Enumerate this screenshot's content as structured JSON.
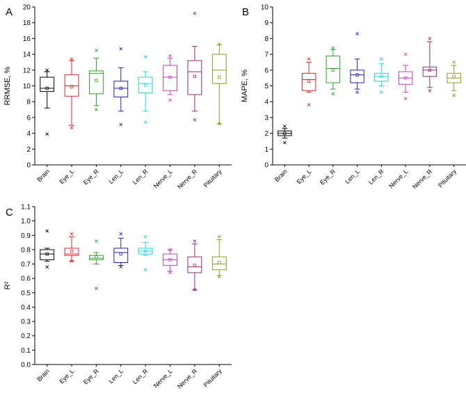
{
  "chart_data": [
    {
      "panel": "A",
      "type": "box",
      "ylabel": "RRMSE, %",
      "ylim": [
        0,
        20
      ],
      "yticks": [
        0,
        2,
        4,
        6,
        8,
        10,
        12,
        14,
        16,
        18,
        20
      ],
      "categories": [
        "Brain",
        "Eye_L",
        "Eye_R",
        "Len_L",
        "Len_R",
        "Nerve_L",
        "Nerve_R",
        "Pituitary"
      ],
      "colors": [
        "#000000",
        "#d62728",
        "#2ca02c",
        "#1f1fb4",
        "#17d4e0",
        "#c03fc0",
        "#8c2a6e",
        "#8f9a1a"
      ],
      "boxes": [
        {
          "min": 7.2,
          "q1": 9.3,
          "median": 9.7,
          "q3": 11.1,
          "max": 11.8,
          "mean": 9.7,
          "outliers": [
            3.9,
            12.0
          ]
        },
        {
          "min": 5.0,
          "q1": 8.7,
          "median": 10.0,
          "q3": 11.4,
          "max": 13.2,
          "mean": 9.9,
          "outliers": [
            4.7,
            13.4
          ]
        },
        {
          "min": 7.5,
          "q1": 9.0,
          "median": 11.6,
          "q3": 11.9,
          "max": 13.5,
          "mean": 10.7,
          "outliers": [
            7.0,
            14.5
          ]
        },
        {
          "min": 6.8,
          "q1": 8.6,
          "median": 9.7,
          "q3": 10.6,
          "max": 12.3,
          "mean": 9.7,
          "outliers": [
            5.1,
            14.7
          ]
        },
        {
          "min": 6.8,
          "q1": 9.1,
          "median": 10.3,
          "q3": 11.1,
          "max": 11.8,
          "mean": 10.1,
          "outliers": [
            5.4,
            13.7
          ]
        },
        {
          "min": 8.9,
          "q1": 9.4,
          "median": 11.1,
          "q3": 12.6,
          "max": 13.5,
          "mean": 11.1,
          "outliers": [
            8.2,
            13.8
          ]
        },
        {
          "min": 6.8,
          "q1": 8.9,
          "median": 11.8,
          "q3": 13.2,
          "max": 15.0,
          "mean": 11.2,
          "outliers": [
            5.7,
            19.2
          ]
        },
        {
          "min": 5.2,
          "q1": 10.3,
          "median": 12.0,
          "q3": 14.0,
          "max": 15.2,
          "mean": 11.1,
          "outliers": [
            5.2,
            15.3
          ]
        }
      ]
    },
    {
      "panel": "B",
      "type": "box",
      "ylabel": "MAPE, %",
      "ylim": [
        0,
        10
      ],
      "yticks": [
        0,
        1,
        2,
        3,
        4,
        5,
        6,
        7,
        8,
        9,
        10
      ],
      "categories": [
        "Brain",
        "Eye_L",
        "Eye_R",
        "Len_L",
        "Len_R",
        "Nerve_L",
        "Nerve_R",
        "Pituitary"
      ],
      "colors": [
        "#000000",
        "#d62728",
        "#2ca02c",
        "#1f1fb4",
        "#17d4e0",
        "#c03fc0",
        "#8c2a6e",
        "#8f9a1a"
      ],
      "boxes": [
        {
          "min": 1.7,
          "q1": 1.85,
          "median": 2.0,
          "q3": 2.15,
          "max": 2.3,
          "mean": 2.0,
          "outliers": [
            1.4,
            2.45
          ]
        },
        {
          "min": 4.6,
          "q1": 4.7,
          "median": 5.4,
          "q3": 5.8,
          "max": 6.5,
          "mean": 5.3,
          "outliers": [
            3.8,
            6.7
          ]
        },
        {
          "min": 4.8,
          "q1": 5.2,
          "median": 6.1,
          "q3": 6.9,
          "max": 7.3,
          "mean": 6.0,
          "outliers": [
            4.5,
            7.4
          ]
        },
        {
          "min": 4.8,
          "q1": 5.2,
          "median": 5.7,
          "q3": 6.0,
          "max": 6.7,
          "mean": 5.7,
          "outliers": [
            4.6,
            8.3
          ]
        },
        {
          "min": 5.0,
          "q1": 5.3,
          "median": 5.6,
          "q3": 5.8,
          "max": 6.4,
          "mean": 5.6,
          "outliers": [
            4.6,
            6.7
          ]
        },
        {
          "min": 4.6,
          "q1": 5.1,
          "median": 5.5,
          "q3": 5.9,
          "max": 6.3,
          "mean": 5.5,
          "outliers": [
            4.2,
            7.0
          ]
        },
        {
          "min": 4.9,
          "q1": 5.6,
          "median": 6.0,
          "q3": 6.2,
          "max": 7.8,
          "mean": 6.0,
          "outliers": [
            4.7,
            8.0
          ]
        },
        {
          "min": 4.7,
          "q1": 5.2,
          "median": 5.5,
          "q3": 5.8,
          "max": 6.3,
          "mean": 5.6,
          "outliers": [
            4.4,
            6.5
          ]
        }
      ]
    },
    {
      "panel": "C",
      "type": "box",
      "ylabel": "R²",
      "ylim": [
        0,
        1.1
      ],
      "yticks": [
        "0.0",
        "0.1",
        "0.2",
        "0.3",
        "0.4",
        "0.5",
        "0.6",
        "0.7",
        "0.8",
        "0.9",
        "1.0",
        "1.1"
      ],
      "categories": [
        "Brain",
        "Eye_L",
        "Eye_R",
        "Len_L",
        "Len_R",
        "Nerve_L",
        "Nerve_R",
        "Pituitary"
      ],
      "colors": [
        "#000000",
        "#d62728",
        "#2ca02c",
        "#1f1fb4",
        "#17d4e0",
        "#c03fc0",
        "#8c2a6e",
        "#8f9a1a"
      ],
      "boxes": [
        {
          "min": 0.72,
          "q1": 0.73,
          "median": 0.77,
          "q3": 0.8,
          "max": 0.81,
          "mean": 0.77,
          "outliers": [
            0.68,
            0.93
          ]
        },
        {
          "min": 0.72,
          "q1": 0.76,
          "median": 0.77,
          "q3": 0.81,
          "max": 0.89,
          "mean": 0.79,
          "outliers": [
            0.72,
            0.91
          ]
        },
        {
          "min": 0.7,
          "q1": 0.73,
          "median": 0.74,
          "q3": 0.76,
          "max": 0.78,
          "mean": 0.75,
          "outliers": [
            0.53,
            0.86
          ]
        },
        {
          "min": 0.69,
          "q1": 0.71,
          "median": 0.78,
          "q3": 0.81,
          "max": 0.88,
          "mean": 0.77,
          "outliers": [
            0.68,
            0.91
          ]
        },
        {
          "min": 0.76,
          "q1": 0.77,
          "median": 0.79,
          "q3": 0.81,
          "max": 0.85,
          "mean": 0.79,
          "outliers": [
            0.66,
            0.89
          ]
        },
        {
          "min": 0.65,
          "q1": 0.69,
          "median": 0.73,
          "q3": 0.77,
          "max": 0.8,
          "mean": 0.73,
          "outliers": [
            0.64,
            0.8
          ]
        },
        {
          "min": 0.52,
          "q1": 0.64,
          "median": 0.68,
          "q3": 0.75,
          "max": 0.84,
          "mean": 0.69,
          "outliers": [
            0.52,
            0.86
          ]
        },
        {
          "min": 0.62,
          "q1": 0.66,
          "median": 0.7,
          "q3": 0.75,
          "max": 0.87,
          "mean": 0.71,
          "outliers": [
            0.61,
            0.89
          ]
        }
      ]
    }
  ]
}
